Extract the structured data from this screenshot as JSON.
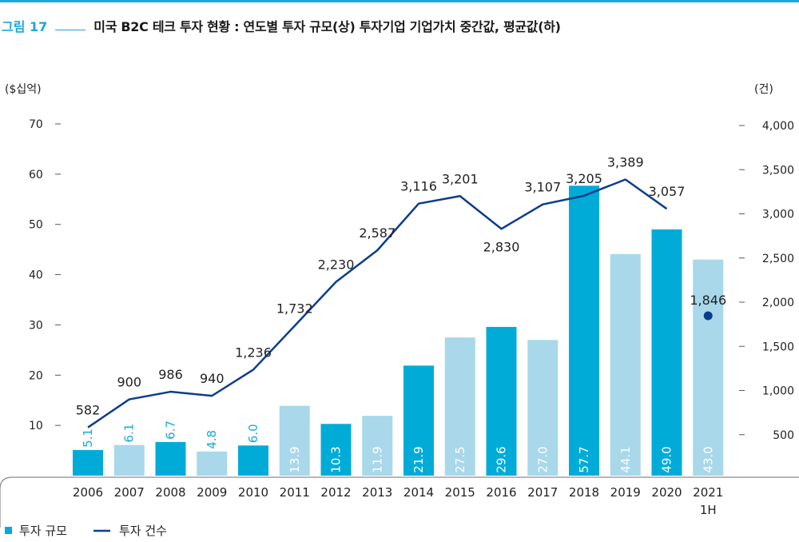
{
  "figure": {
    "label": "그림 17",
    "title": "미국 B2C 테크 투자 현황 : 연도별 투자 규모(상) 투자기업 기업가치 중간값, 평균값(하)"
  },
  "colors": {
    "bar_dark": "#00acd7",
    "bar_light": "#a8d8ea",
    "line": "#0b3d8c",
    "bar_label_on_bar": "#ffffff",
    "bar_label_small": "#19a8d8",
    "text": "#222222",
    "axis": "#555555"
  },
  "chart_data": {
    "type": "bar",
    "categories": [
      "2006",
      "2007",
      "2008",
      "2009",
      "2010",
      "2011",
      "2012",
      "2013",
      "2014",
      "2015",
      "2016",
      "2017",
      "2018",
      "2019",
      "2020",
      "2021\n1H"
    ],
    "series": [
      {
        "name": "투자 규모",
        "type": "bar",
        "axis": "left",
        "values": [
          5.1,
          6.1,
          6.7,
          4.8,
          6.0,
          13.9,
          10.3,
          11.9,
          21.9,
          27.5,
          29.6,
          27.0,
          57.7,
          44.1,
          49.0,
          43.0
        ],
        "labels": [
          "5.1",
          "6.1",
          "6.7",
          "4.8",
          "6.0",
          "13.9",
          "10.3",
          "11.9",
          "21.9",
          "27.5",
          "29.6",
          "27.0",
          "57.7",
          "44.1",
          "49.0",
          "43.0"
        ],
        "shade": [
          "dark",
          "light",
          "dark",
          "light",
          "dark",
          "light",
          "dark",
          "light",
          "dark",
          "light",
          "dark",
          "light",
          "dark",
          "light",
          "dark",
          "light"
        ]
      },
      {
        "name": "투자 건수",
        "type": "line",
        "axis": "right",
        "values": [
          582,
          900,
          986,
          940,
          1236,
          1732,
          2230,
          2587,
          3116,
          3201,
          2830,
          3107,
          3205,
          3389,
          3057,
          1846
        ],
        "labels": [
          "582",
          "900",
          "986",
          "940",
          "1,236",
          "1,732",
          "2,230",
          "2,587",
          "3,116",
          "3,201",
          "2,830",
          "3,107",
          "3,205",
          "3,389",
          "3,057",
          "1,846"
        ],
        "point_only_last": true
      }
    ],
    "left_axis": {
      "unit_label": "($십억)",
      "ticks": [
        10,
        20,
        30,
        40,
        50,
        60,
        70
      ],
      "tick_labels": [
        "10",
        "20",
        "30",
        "40",
        "50",
        "60",
        "70"
      ],
      "range": [
        0,
        70
      ]
    },
    "right_axis": {
      "unit_label": "(건)",
      "ticks": [
        500,
        1000,
        1500,
        2000,
        2500,
        3000,
        3500,
        4000
      ],
      "tick_labels": [
        "500",
        "1,000",
        "1,500",
        "2,000",
        "2,500",
        "3,000",
        "3,500",
        "4,000"
      ],
      "range": [
        0,
        4000
      ]
    },
    "legend": {
      "position": "bottom-left",
      "items": [
        {
          "label": "투자 규모",
          "marker": "square"
        },
        {
          "label": "투자 건수",
          "marker": "line"
        }
      ]
    },
    "grid": false
  }
}
